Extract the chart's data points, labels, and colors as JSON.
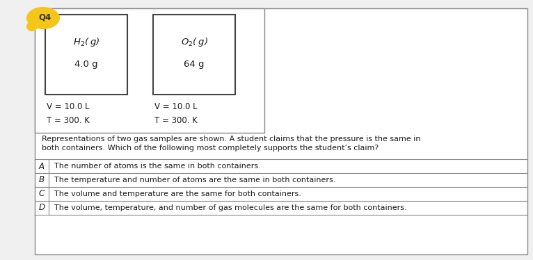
{
  "title_label": "Q4",
  "title_bg": "#f5c518",
  "bg_color": "#f0f0f0",
  "outer_border_color": "#888888",
  "box1_label_formula": "H$_2$( g)",
  "box1_label_mass": "4.0 g",
  "box1_V": "V = 10.0 L",
  "box1_T": "T = 300. K",
  "box2_label_formula": "O$_2$( g)",
  "box2_label_mass": "64 g",
  "box2_V": "V = 10.0 L",
  "box2_T": "T = 300. K",
  "question_text_line1": "Representations of two gas samples are shown. A student claims that the pressure is the same in",
  "question_text_line2": "both containers. Which of the following most completely supports the student’s claim?",
  "choices": [
    {
      "label": "A",
      "text": "The number of atoms is the same in both containers."
    },
    {
      "label": "B",
      "text": "The temperature and number of atoms are the same in both containers."
    },
    {
      "label": "C",
      "text": "The volume and temperature are the same for both containers."
    },
    {
      "label": "D",
      "text": "The volume, temperature, and number of gas molecules are the same for both containers."
    }
  ],
  "font_size_question": 8.0,
  "font_size_choices": 8.0,
  "font_size_box_labels": 9.5,
  "font_size_q4": 8.5,
  "text_color": "#1a1a1a"
}
